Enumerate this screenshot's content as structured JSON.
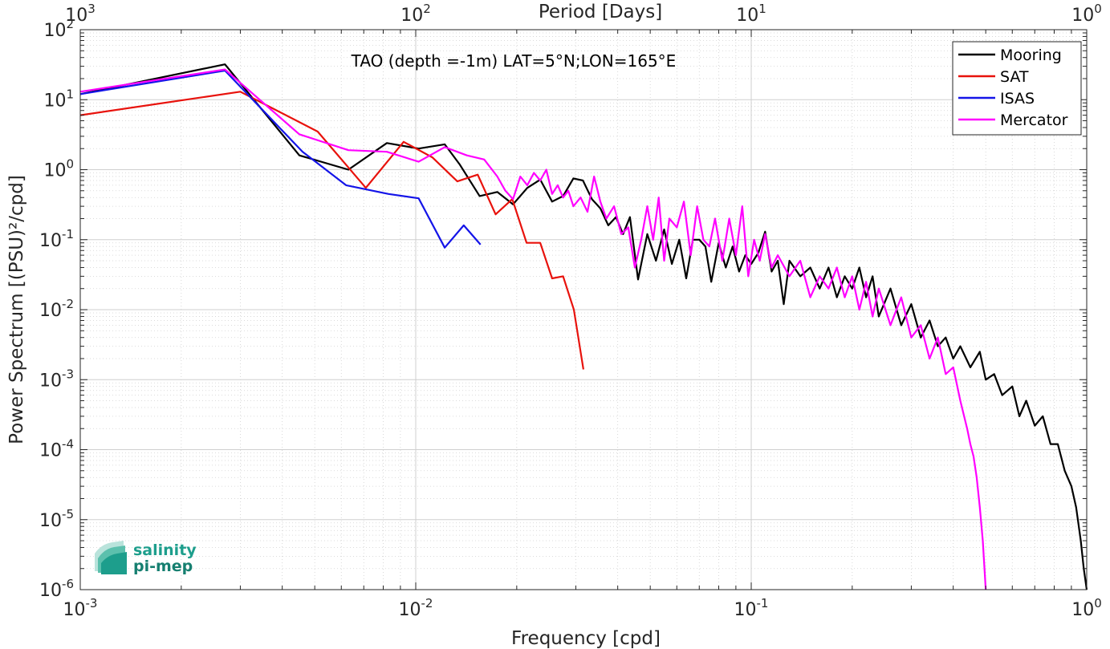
{
  "chart_data": {
    "type": "line",
    "annotation": "TAO (depth =-1m) LAT=5°N;LON=165°E",
    "xlabel": "Frequency [cpd]",
    "ylabel": "Power Spectrum [(PSU)²/cpd]",
    "top_xlabel": "Period [Days]",
    "xscale": "log",
    "yscale": "log",
    "xlim": [
      0.001,
      1
    ],
    "ylim": [
      1e-06,
      100
    ],
    "grid": true,
    "legend_position": "top-right",
    "x_ticks": [
      {
        "value": 0.001,
        "base": "10",
        "exp": "-3"
      },
      {
        "value": 0.01,
        "base": "10",
        "exp": "-2"
      },
      {
        "value": 0.1,
        "base": "10",
        "exp": "-1"
      },
      {
        "value": 1,
        "base": "10",
        "exp": "0"
      }
    ],
    "top_x_ticks": [
      {
        "value": 0.001,
        "base": "10",
        "exp": "3"
      },
      {
        "value": 0.01,
        "base": "10",
        "exp": "2"
      },
      {
        "value": 0.1,
        "base": "10",
        "exp": "1"
      },
      {
        "value": 1,
        "base": "10",
        "exp": "0"
      }
    ],
    "y_ticks": [
      {
        "value": 1e-06,
        "base": "10",
        "exp": "-6"
      },
      {
        "value": 1e-05,
        "base": "10",
        "exp": "-5"
      },
      {
        "value": 0.0001,
        "base": "10",
        "exp": "-4"
      },
      {
        "value": 0.001,
        "base": "10",
        "exp": "-3"
      },
      {
        "value": 0.01,
        "base": "10",
        "exp": "-2"
      },
      {
        "value": 0.1,
        "base": "10",
        "exp": "-1"
      },
      {
        "value": 1,
        "base": "10",
        "exp": "0"
      },
      {
        "value": 10,
        "base": "10",
        "exp": "1"
      },
      {
        "value": 100,
        "base": "10",
        "exp": "2"
      }
    ],
    "series": [
      {
        "name": "Mooring",
        "color": "#000000",
        "points": [
          [
            0.001,
            12
          ],
          [
            0.0027,
            32
          ],
          [
            0.0045,
            1.6
          ],
          [
            0.0063,
            1.0
          ],
          [
            0.0082,
            2.4
          ],
          [
            0.0102,
            2.0
          ],
          [
            0.0122,
            2.3
          ],
          [
            0.0135,
            1.2
          ],
          [
            0.0155,
            0.42
          ],
          [
            0.0175,
            0.48
          ],
          [
            0.0195,
            0.32
          ],
          [
            0.0215,
            0.55
          ],
          [
            0.0235,
            0.72
          ],
          [
            0.0255,
            0.35
          ],
          [
            0.0275,
            0.42
          ],
          [
            0.0295,
            0.75
          ],
          [
            0.0315,
            0.7
          ],
          [
            0.0335,
            0.38
          ],
          [
            0.0355,
            0.28
          ],
          [
            0.0375,
            0.16
          ],
          [
            0.0395,
            0.21
          ],
          [
            0.0415,
            0.12
          ],
          [
            0.0435,
            0.21
          ],
          [
            0.046,
            0.027
          ],
          [
            0.049,
            0.12
          ],
          [
            0.052,
            0.05
          ],
          [
            0.055,
            0.14
          ],
          [
            0.058,
            0.045
          ],
          [
            0.061,
            0.1
          ],
          [
            0.064,
            0.028
          ],
          [
            0.067,
            0.1
          ],
          [
            0.07,
            0.1
          ],
          [
            0.073,
            0.08
          ],
          [
            0.076,
            0.025
          ],
          [
            0.08,
            0.09
          ],
          [
            0.084,
            0.04
          ],
          [
            0.088,
            0.08
          ],
          [
            0.092,
            0.035
          ],
          [
            0.096,
            0.06
          ],
          [
            0.1,
            0.045
          ],
          [
            0.105,
            0.065
          ],
          [
            0.11,
            0.13
          ],
          [
            0.115,
            0.035
          ],
          [
            0.12,
            0.05
          ],
          [
            0.125,
            0.012
          ],
          [
            0.13,
            0.05
          ],
          [
            0.14,
            0.03
          ],
          [
            0.15,
            0.04
          ],
          [
            0.16,
            0.02
          ],
          [
            0.17,
            0.04
          ],
          [
            0.18,
            0.015
          ],
          [
            0.19,
            0.03
          ],
          [
            0.2,
            0.02
          ],
          [
            0.21,
            0.04
          ],
          [
            0.22,
            0.015
          ],
          [
            0.23,
            0.03
          ],
          [
            0.24,
            0.008
          ],
          [
            0.26,
            0.02
          ],
          [
            0.28,
            0.006
          ],
          [
            0.3,
            0.012
          ],
          [
            0.32,
            0.004
          ],
          [
            0.34,
            0.007
          ],
          [
            0.36,
            0.003
          ],
          [
            0.38,
            0.004
          ],
          [
            0.4,
            0.002
          ],
          [
            0.42,
            0.003
          ],
          [
            0.45,
            0.0015
          ],
          [
            0.48,
            0.0025
          ],
          [
            0.5,
            0.001
          ],
          [
            0.53,
            0.0012
          ],
          [
            0.56,
            0.0006
          ],
          [
            0.6,
            0.0008
          ],
          [
            0.63,
            0.0003
          ],
          [
            0.66,
            0.0005
          ],
          [
            0.7,
            0.00022
          ],
          [
            0.74,
            0.0003
          ],
          [
            0.78,
            0.00012
          ],
          [
            0.82,
            0.00012
          ],
          [
            0.86,
            5e-05
          ],
          [
            0.9,
            3e-05
          ],
          [
            0.93,
            1.5e-05
          ],
          [
            0.96,
            5e-06
          ],
          [
            0.98,
            2e-06
          ],
          [
            1.0,
            1e-06
          ]
        ]
      },
      {
        "name": "SAT",
        "color": "#e8120c",
        "points": [
          [
            0.001,
            6
          ],
          [
            0.003,
            13
          ],
          [
            0.0051,
            3.5
          ],
          [
            0.0071,
            0.55
          ],
          [
            0.0092,
            2.5
          ],
          [
            0.0112,
            1.5
          ],
          [
            0.0133,
            0.68
          ],
          [
            0.0153,
            0.85
          ],
          [
            0.0173,
            0.23
          ],
          [
            0.0194,
            0.38
          ],
          [
            0.0214,
            0.09
          ],
          [
            0.0235,
            0.09
          ],
          [
            0.0255,
            0.028
          ],
          [
            0.0275,
            0.03
          ],
          [
            0.0296,
            0.01
          ],
          [
            0.0316,
            0.0014
          ]
        ]
      },
      {
        "name": "ISAS",
        "color": "#1414e8",
        "points": [
          [
            0.001,
            12
          ],
          [
            0.0027,
            26
          ],
          [
            0.0046,
            1.8
          ],
          [
            0.0062,
            0.6
          ],
          [
            0.0083,
            0.45
          ],
          [
            0.0102,
            0.39
          ],
          [
            0.0122,
            0.077
          ],
          [
            0.0139,
            0.16
          ],
          [
            0.0156,
            0.085
          ]
        ]
      },
      {
        "name": "Mercator",
        "color": "#ff00ff",
        "points": [
          [
            0.001,
            13
          ],
          [
            0.0027,
            27
          ],
          [
            0.0045,
            3.2
          ],
          [
            0.0063,
            1.9
          ],
          [
            0.0082,
            1.8
          ],
          [
            0.0102,
            1.3
          ],
          [
            0.0122,
            2.1
          ],
          [
            0.0142,
            1.6
          ],
          [
            0.016,
            1.4
          ],
          [
            0.0175,
            0.8
          ],
          [
            0.0185,
            0.5
          ],
          [
            0.0195,
            0.38
          ],
          [
            0.0205,
            0.8
          ],
          [
            0.0215,
            0.6
          ],
          [
            0.0225,
            0.9
          ],
          [
            0.0235,
            0.7
          ],
          [
            0.0245,
            1.0
          ],
          [
            0.0255,
            0.45
          ],
          [
            0.0265,
            0.6
          ],
          [
            0.0275,
            0.4
          ],
          [
            0.0285,
            0.5
          ],
          [
            0.0295,
            0.3
          ],
          [
            0.031,
            0.4
          ],
          [
            0.0325,
            0.25
          ],
          [
            0.034,
            0.8
          ],
          [
            0.0355,
            0.35
          ],
          [
            0.037,
            0.2
          ],
          [
            0.039,
            0.3
          ],
          [
            0.041,
            0.12
          ],
          [
            0.043,
            0.15
          ],
          [
            0.045,
            0.04
          ],
          [
            0.047,
            0.1
          ],
          [
            0.049,
            0.3
          ],
          [
            0.051,
            0.1
          ],
          [
            0.053,
            0.4
          ],
          [
            0.055,
            0.05
          ],
          [
            0.057,
            0.2
          ],
          [
            0.06,
            0.15
          ],
          [
            0.063,
            0.35
          ],
          [
            0.066,
            0.06
          ],
          [
            0.069,
            0.3
          ],
          [
            0.072,
            0.1
          ],
          [
            0.075,
            0.08
          ],
          [
            0.078,
            0.2
          ],
          [
            0.082,
            0.05
          ],
          [
            0.086,
            0.2
          ],
          [
            0.09,
            0.06
          ],
          [
            0.094,
            0.3
          ],
          [
            0.098,
            0.03
          ],
          [
            0.102,
            0.1
          ],
          [
            0.106,
            0.05
          ],
          [
            0.11,
            0.12
          ],
          [
            0.115,
            0.04
          ],
          [
            0.12,
            0.06
          ],
          [
            0.13,
            0.03
          ],
          [
            0.14,
            0.05
          ],
          [
            0.15,
            0.015
          ],
          [
            0.16,
            0.03
          ],
          [
            0.17,
            0.02
          ],
          [
            0.18,
            0.04
          ],
          [
            0.19,
            0.015
          ],
          [
            0.2,
            0.03
          ],
          [
            0.21,
            0.01
          ],
          [
            0.22,
            0.025
          ],
          [
            0.23,
            0.008
          ],
          [
            0.24,
            0.02
          ],
          [
            0.26,
            0.006
          ],
          [
            0.28,
            0.015
          ],
          [
            0.3,
            0.004
          ],
          [
            0.32,
            0.006
          ],
          [
            0.34,
            0.002
          ],
          [
            0.36,
            0.004
          ],
          [
            0.38,
            0.0012
          ],
          [
            0.4,
            0.0015
          ],
          [
            0.42,
            0.0005
          ],
          [
            0.44,
            0.0002
          ],
          [
            0.45,
            0.00012
          ],
          [
            0.46,
            8e-05
          ],
          [
            0.47,
            4e-05
          ],
          [
            0.48,
            1.5e-05
          ],
          [
            0.49,
            5e-06
          ],
          [
            0.5,
            1e-06
          ]
        ]
      }
    ]
  },
  "logo": {
    "line1": "salinity",
    "line2": "pi-mep",
    "color": "#1d9e8c"
  }
}
